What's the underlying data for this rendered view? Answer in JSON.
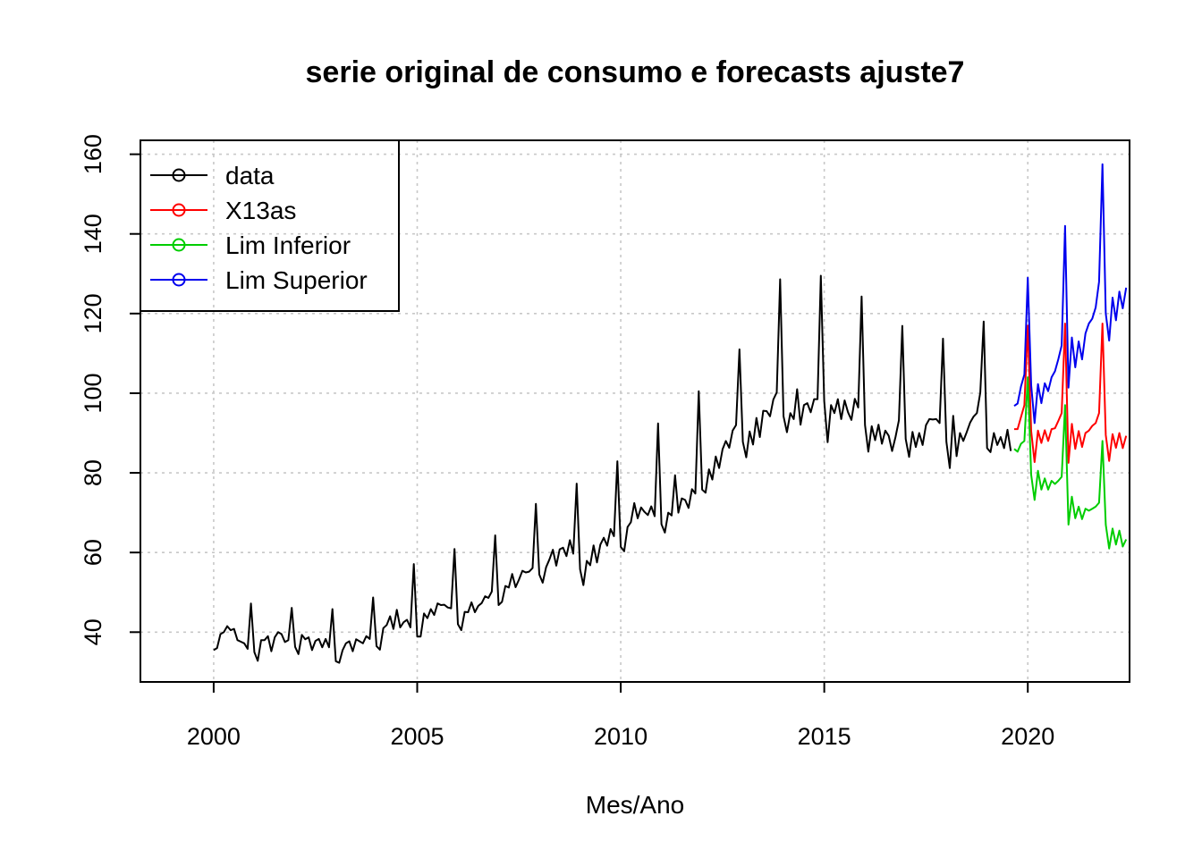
{
  "chart_data": {
    "type": "line",
    "title": "serie original de consumo e forecasts ajuste7",
    "xlabel": "Mes/Ano",
    "ylabel": "",
    "xlim": [
      1998.2,
      2022.5
    ],
    "ylim": [
      27.5,
      163.5
    ],
    "x_ticks": [
      2000,
      2005,
      2010,
      2015,
      2020
    ],
    "y_ticks": [
      40,
      60,
      80,
      100,
      120,
      140,
      160
    ],
    "grid": true,
    "legend": {
      "position": "top-left",
      "entries": [
        "data",
        "X13as",
        "Lim Inferior",
        "Lim Superior"
      ]
    },
    "series": [
      {
        "name": "data",
        "color": "#000000",
        "start": [
          2000,
          1
        ],
        "frequency": 12,
        "values": [
          35.5,
          36,
          39.5,
          40,
          41.5,
          40.5,
          40.8,
          38,
          37.6,
          37.2,
          35.8,
          47.2,
          35,
          32.8,
          38,
          38,
          39,
          35.2,
          38.7,
          40,
          39.5,
          37.5,
          38,
          46.1,
          36.3,
          34.5,
          39.3,
          38.2,
          38.7,
          35.5,
          37.8,
          38.3,
          36.2,
          38.3,
          36.2,
          45.8,
          32.7,
          32.3,
          35.5,
          37.2,
          37.7,
          35.2,
          38.2,
          37.7,
          37.2,
          39,
          38.3,
          48.7,
          36.5,
          35.6,
          41,
          41.8,
          44,
          40.8,
          45.6,
          41.2,
          42.5,
          43.1,
          41.2,
          57.1,
          38.9,
          38.9,
          44.7,
          43.5,
          45.8,
          44.3,
          47.2,
          46.8,
          46.9,
          46.2,
          46,
          60.9,
          42,
          40.5,
          45.1,
          45,
          47.5,
          45,
          46.6,
          47.3,
          49,
          48.6,
          50.2,
          64.3,
          46.8,
          47.6,
          51.6,
          51.2,
          54.6,
          51.3,
          53.2,
          55.4,
          55,
          55.2,
          56.1,
          72.2,
          54.5,
          52.4,
          56.3,
          58.3,
          60.7,
          56.7,
          60.8,
          61.2,
          59.1,
          63.1,
          59.7,
          77.3,
          55.8,
          51.8,
          57.9,
          56.8,
          61.8,
          57.5,
          62,
          63.7,
          61.7,
          65.9,
          64.1,
          82.9,
          61.4,
          60.3,
          66.4,
          67.6,
          72.4,
          68.6,
          71.3,
          70.2,
          69.4,
          71.6,
          69.1,
          92.4,
          67.1,
          65,
          70,
          69.3,
          79.4,
          70,
          73.6,
          73.2,
          71.2,
          75.9,
          74.8,
          100.5,
          75.8,
          75,
          80.9,
          78.3,
          84.1,
          81.2,
          85.9,
          88,
          86.3,
          90.6,
          92,
          111,
          87.8,
          83.9,
          90.4,
          87.1,
          93.8,
          89,
          95.6,
          95.5,
          94.2,
          98.4,
          100.2,
          128.6,
          94.2,
          90.2,
          95,
          93.5,
          101,
          92.1,
          97,
          97.5,
          95.2,
          98.5,
          98.5,
          129.5,
          98,
          87.7,
          97,
          95,
          98.5,
          93.5,
          98.2,
          95.2,
          93.3,
          98.6,
          96.4,
          124.3,
          92,
          85.3,
          91.7,
          88.2,
          92.1,
          87.3,
          90.6,
          89.3,
          85.5,
          89,
          93.2,
          116.9,
          88.5,
          84,
          90.3,
          86.5,
          90,
          87,
          92,
          93.5,
          93.4,
          93.5,
          92.5,
          113.7,
          87.8,
          81.2,
          94.3,
          84.2,
          90,
          88,
          90.2,
          92.6,
          94.1,
          95,
          100.2,
          118,
          86.2,
          85.2,
          90,
          87,
          89,
          86.2,
          90.8,
          85.5
        ]
      },
      {
        "name": "X13as",
        "color": "#ff0000",
        "start": [
          2019,
          9
        ],
        "frequency": 12,
        "values": [
          91,
          91,
          94,
          97,
          117,
          90.5,
          82.7,
          90.6,
          87.5,
          90.7,
          88,
          91,
          91.2,
          93,
          95,
          117.5,
          82.5,
          92.3,
          86,
          90.5,
          86.5,
          90,
          90.6,
          91.8,
          92.5,
          95,
          117.5,
          89.5,
          83,
          89.7,
          86.3,
          90,
          86.2,
          89.3
        ]
      },
      {
        "name": "Lim Inferior",
        "color": "#00cd00",
        "start": [
          2019,
          9
        ],
        "frequency": 12,
        "values": [
          86,
          85.3,
          87.3,
          88,
          104,
          79.5,
          73.2,
          80.5,
          75.8,
          78.6,
          75.8,
          78,
          77.2,
          78,
          79,
          97,
          67,
          74,
          68.6,
          71.5,
          68.4,
          71,
          70.5,
          71,
          71.5,
          72.5,
          88,
          67,
          61,
          66,
          62,
          65.5,
          61.5,
          63.3
        ]
      },
      {
        "name": "Lim Superior",
        "color": "#0000ee",
        "start": [
          2019,
          9
        ],
        "frequency": 12,
        "values": [
          96.8,
          97.4,
          101.7,
          104.7,
          129,
          102,
          92.5,
          102.3,
          97.5,
          102.5,
          100.5,
          104,
          105.5,
          108.5,
          112,
          142,
          101.4,
          114,
          106.5,
          113,
          108.5,
          115,
          117.5,
          118.7,
          121.5,
          128,
          157.5,
          120,
          113.2,
          124,
          118.3,
          125.5,
          121.3,
          126.5
        ]
      }
    ]
  }
}
